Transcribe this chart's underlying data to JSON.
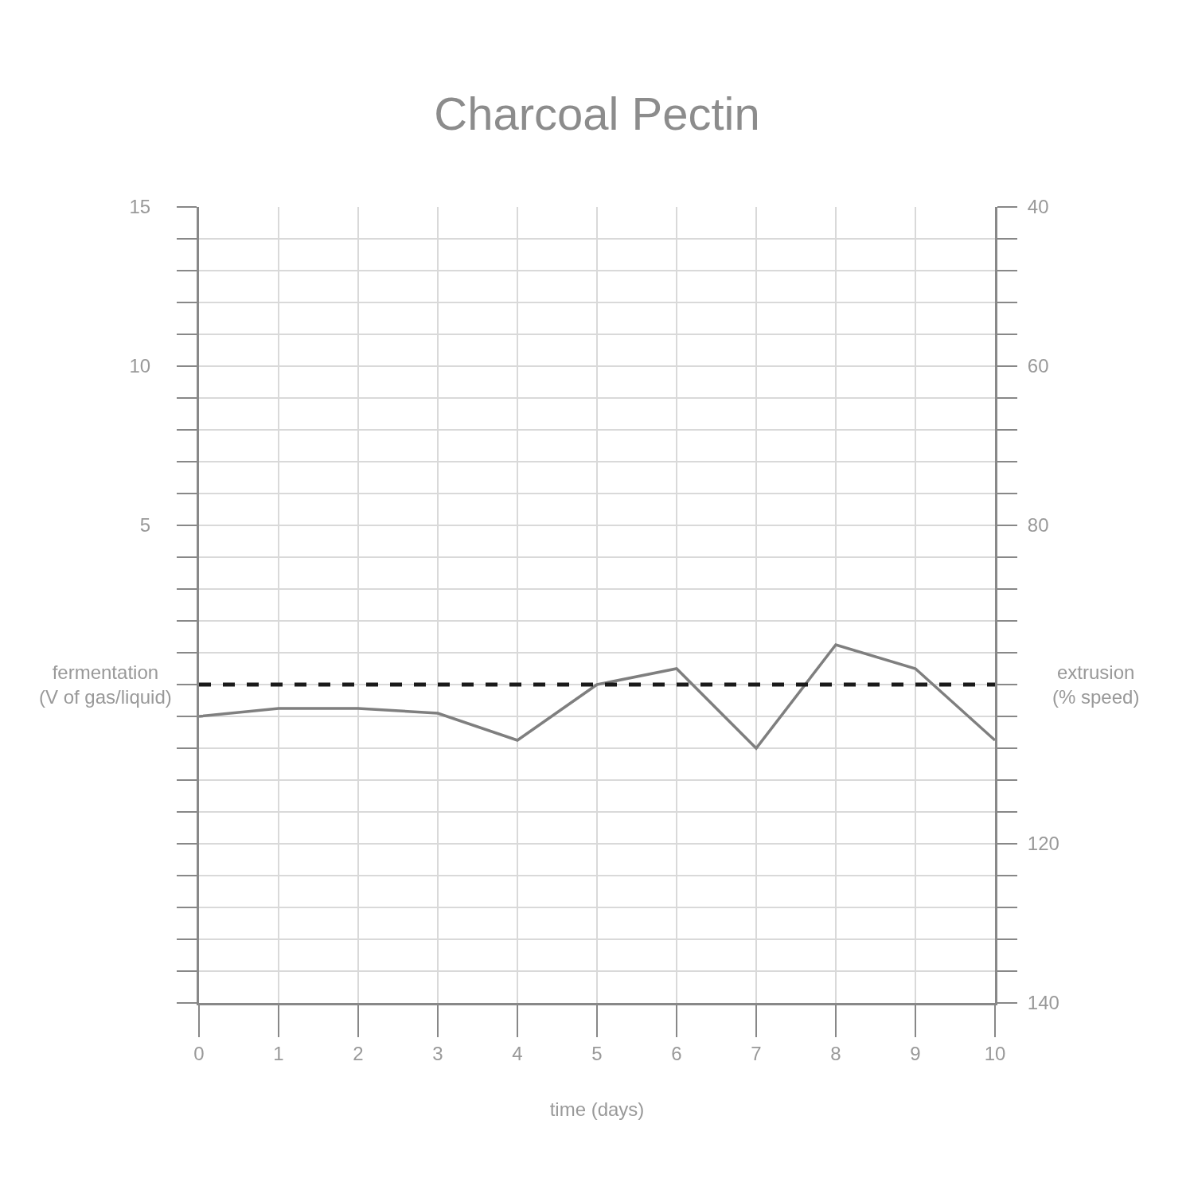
{
  "chart_data": {
    "type": "line",
    "title": "Charcoal Pectin",
    "xlabel": "time (days)",
    "ylabel": "fermentation\n(V of gas/liquid)",
    "y2label": "extrusion\n(% speed)",
    "x": [
      0,
      1,
      2,
      3,
      4,
      5,
      6,
      7,
      8,
      9,
      10
    ],
    "series": [
      {
        "color": "#7f7f7f",
        "line_style": "solid",
        "values": [
          -1,
          -0.75,
          -0.75,
          -0.9,
          -1.75,
          0,
          0.5,
          -2,
          1.25,
          0.5,
          -1.75
        ]
      },
      {
        "color": "#1a1a1a",
        "line_style": "dashed",
        "axis": "y2",
        "values": [
          100,
          100,
          100,
          100,
          100,
          100,
          100,
          100,
          100,
          100,
          100
        ]
      }
    ],
    "xlim": [
      0,
      10
    ],
    "xticks": [
      0,
      1,
      2,
      3,
      4,
      5,
      6,
      7,
      8,
      9,
      10
    ],
    "ylim": [
      -10,
      15
    ],
    "yticks": [
      {
        "value": -10,
        "label": null
      },
      {
        "value": -9,
        "label": null
      },
      {
        "value": -8,
        "label": null
      },
      {
        "value": -7,
        "label": null
      },
      {
        "value": -6,
        "label": null
      },
      {
        "value": -5,
        "label": null
      },
      {
        "value": -4,
        "label": null
      },
      {
        "value": -3,
        "label": null
      },
      {
        "value": -2,
        "label": null
      },
      {
        "value": -1,
        "label": null
      },
      {
        "value": 0,
        "label": null
      },
      {
        "value": 1,
        "label": null
      },
      {
        "value": 2,
        "label": null
      },
      {
        "value": 3,
        "label": null
      },
      {
        "value": 4,
        "label": null
      },
      5,
      {
        "value": 6,
        "label": null
      },
      {
        "value": 7,
        "label": null
      },
      {
        "value": 8,
        "label": null
      },
      {
        "value": 9,
        "label": null
      },
      10,
      {
        "value": 11,
        "label": null
      },
      {
        "value": 12,
        "label": null
      },
      {
        "value": 13,
        "label": null
      },
      {
        "value": 14,
        "label": null
      },
      15
    ],
    "y2lim": [
      140,
      40
    ],
    "y2ticks": [
      40,
      {
        "value": 44,
        "label": null
      },
      {
        "value": 48,
        "label": null
      },
      {
        "value": 52,
        "label": null
      },
      {
        "value": 56,
        "label": null
      },
      60,
      {
        "value": 64,
        "label": null
      },
      {
        "value": 68,
        "label": null
      },
      {
        "value": 72,
        "label": null
      },
      {
        "value": 76,
        "label": null
      },
      80,
      {
        "value": 84,
        "label": null
      },
      {
        "value": 88,
        "label": null
      },
      {
        "value": 92,
        "label": null
      },
      {
        "value": 96,
        "label": null
      },
      {
        "value": 100,
        "label": null
      },
      {
        "value": 104,
        "label": null
      },
      {
        "value": 108,
        "label": null
      },
      {
        "value": 112,
        "label": null
      },
      {
        "value": 116,
        "label": null
      },
      120,
      {
        "value": 124,
        "label": null
      },
      {
        "value": 128,
        "label": null
      },
      {
        "value": 132,
        "label": null
      },
      {
        "value": 136,
        "label": null
      },
      140
    ],
    "grid": true
  }
}
